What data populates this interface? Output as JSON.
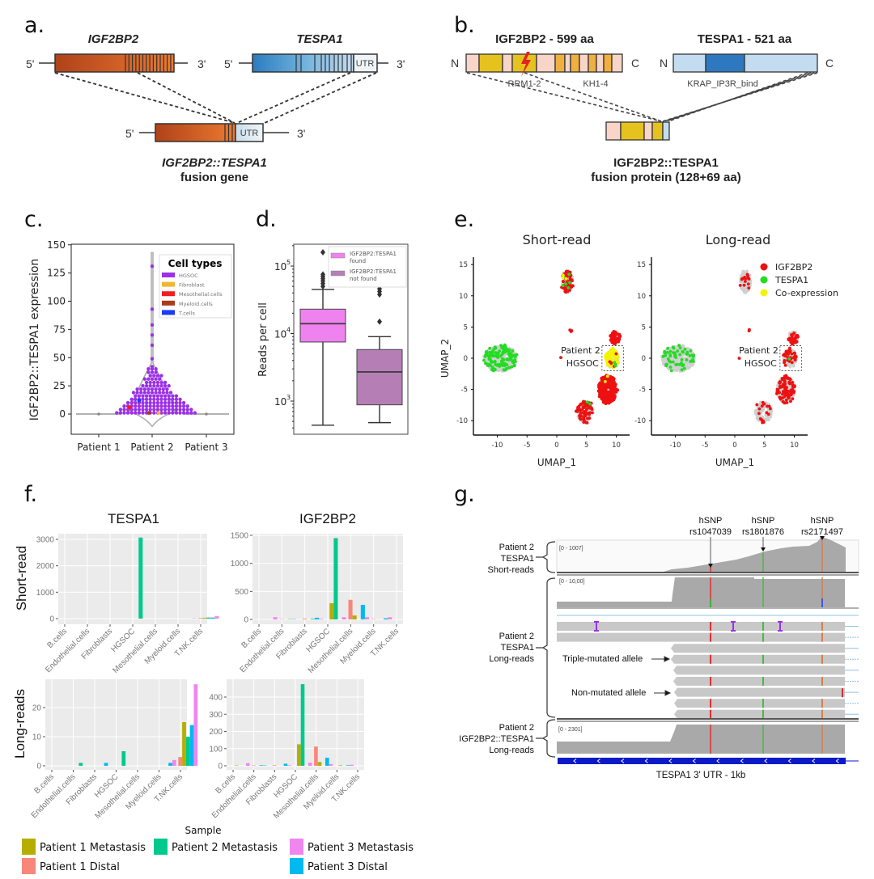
{
  "panel_labels": {
    "a": "a.",
    "b": "b.",
    "c": "c.",
    "d": "d.",
    "e": "e.",
    "f": "f.",
    "g": "g."
  },
  "panel_a": {
    "gene1": "IGF2BP2",
    "gene2": "TESPA1",
    "five_prime": "5'",
    "three_prime": "3'",
    "utr": "UTR",
    "fusion_name": "IGF2BP2::TESPA1",
    "fusion_sub": "fusion gene",
    "colors": {
      "igf2bp2": "#d05a22",
      "tespa1": "#3a8ac8",
      "utr": "#dce8f0"
    }
  },
  "panel_b": {
    "protein1": "IGF2BP2 - 599 aa",
    "protein2": "TESPA1 - 521 aa",
    "n": "N",
    "c": "C",
    "domain1": "RRM1-2",
    "domain2": "KH1-4",
    "domain3": "KRAP_IP3R_bind",
    "fusion_name": "IGF2BP2::TESPA1",
    "fusion_sub": "fusion protein (128+69 aa)",
    "colors": {
      "linker": "#f8d5c8",
      "rrm": "#e6c21e",
      "kh": "#f0b040",
      "tespa_light": "#c4dcf0",
      "tespa_domain": "#2e78c0",
      "mutation": "#e52222"
    }
  },
  "chart_data": [
    {
      "id": "c",
      "type": "violin-swarm",
      "ylabel": "IGF2BP2::TESPA1 expression",
      "categories": [
        "Patient 1",
        "Patient 2",
        "Patient 3"
      ],
      "ylim": [
        -12,
        150
      ],
      "yticks": [
        0,
        25,
        50,
        75,
        100,
        125,
        150
      ],
      "legend": {
        "title": "Cell types",
        "placement": "top-right",
        "items": [
          {
            "name": "HGSOC",
            "color": "#9b30e6"
          },
          {
            "name": "Fibroblast",
            "color": "#f2b632"
          },
          {
            "name": "Mesothelial.cells",
            "color": "#f21d1d"
          },
          {
            "name": "Myeloid.cells",
            "color": "#a83c1c"
          },
          {
            "name": "T.cells",
            "color": "#1a3cf5"
          }
        ]
      },
      "patient1_values": [
        0
      ],
      "patient3_values": [
        0
      ],
      "patient2_levels": [
        [
          1,
          22
        ],
        [
          4,
          20
        ],
        [
          7,
          18
        ],
        [
          10,
          16
        ],
        [
          13,
          14
        ],
        [
          16,
          12
        ],
        [
          19,
          11
        ],
        [
          22,
          9
        ],
        [
          25,
          8
        ],
        [
          28,
          6
        ],
        [
          31,
          5
        ],
        [
          34,
          4
        ],
        [
          37,
          3
        ],
        [
          40,
          3
        ],
        [
          42,
          1
        ],
        [
          49,
          1
        ],
        [
          61,
          1
        ],
        [
          70,
          1
        ],
        [
          79,
          1
        ],
        [
          93,
          1
        ],
        [
          131,
          1
        ]
      ],
      "patient2_special": [
        {
          "value": 6,
          "type": "Mesothelial.cells"
        },
        {
          "value": 12,
          "type": "T.cells"
        },
        {
          "value": 1,
          "type": "Myeloid.cells"
        },
        {
          "value": 1,
          "type": "Fibroblast"
        }
      ]
    },
    {
      "id": "d",
      "type": "box",
      "yscale": "log",
      "ylabel": "Reads per cell",
      "ylim": [
        350,
        200000
      ],
      "yticks": [
        {
          "value": 1000,
          "base": "10",
          "exp": "3"
        },
        {
          "value": 10000,
          "base": "10",
          "exp": "4"
        },
        {
          "value": 100000,
          "base": "10",
          "exp": "5"
        }
      ],
      "legend_placement": "top-right",
      "series": [
        {
          "name": "IGF2BP2:TESPA1 found",
          "name_lines": [
            "IGF2BP2:TESPA1",
            "found"
          ],
          "color": "#ee82ee",
          "whisker_low": 440,
          "q1": 7500,
          "median": 14000,
          "q3": 23000,
          "whisker_high": 45000,
          "outliers": [
            50000,
            55000,
            60000,
            65000,
            70000,
            75000,
            160000
          ]
        },
        {
          "name": "IGF2BP2:TESPA1 not found",
          "name_lines": [
            "IGF2BP2:TESPA1",
            "not found"
          ],
          "color": "#b57fb5",
          "whisker_low": 480,
          "q1": 880,
          "median": 2700,
          "q3": 5800,
          "whisker_high": 9000,
          "outliers": [
            15000,
            38000,
            42000,
            46000
          ]
        }
      ]
    },
    {
      "id": "e",
      "type": "scatter",
      "xlabel": "UMAP_1",
      "ylabel": "UMAP_2",
      "xlim": [
        -14,
        12
      ],
      "ylim": [
        -12,
        16
      ],
      "xticks": [
        -10,
        -5,
        0,
        5,
        10
      ],
      "yticks": [
        -10,
        -5,
        0,
        5,
        10,
        15
      ],
      "panels": [
        "Short-read",
        "Long-read"
      ],
      "legend": {
        "placement": "top-right",
        "items": [
          {
            "name": "IGF2BP2",
            "color": "#ee1111"
          },
          {
            "name": "TESPA1",
            "color": "#22dd22"
          },
          {
            "name": "Co-expression",
            "color": "#f4f400"
          }
        ]
      },
      "background_color": "#cfcfcf",
      "annotation": {
        "line1": "Patient 2",
        "line2": "HGSOC",
        "box": {
          "x": [
            7.6,
            11.2
          ],
          "y": [
            -2,
            2
          ]
        }
      },
      "clusters": [
        {
          "cx": -9.5,
          "cy": 0,
          "sx": 2.8,
          "sy": 2.1,
          "n": 420,
          "short": {
            "TESPA1": 130
          },
          "long": {
            "TESPA1": 55
          }
        },
        {
          "cx": 1.8,
          "cy": 12.3,
          "sx": 0.9,
          "sy": 1.9,
          "n": 110,
          "short": {
            "IGF2BP2": 70,
            "TESPA1": 6,
            "Co-expression": 3
          },
          "long": {
            "IGF2BP2": 14
          }
        },
        {
          "cx": 2.5,
          "cy": 4.5,
          "sx": 0.15,
          "sy": 0.15,
          "n": 3,
          "short": {
            "IGF2BP2": 3
          },
          "long": {
            "IGF2BP2": 2
          }
        },
        {
          "cx": 0.8,
          "cy": 0,
          "sx": 0.1,
          "sy": 0.1,
          "n": 1,
          "short": {
            "IGF2BP2": 1
          },
          "long": {
            "IGF2BP2": 1
          }
        },
        {
          "cx": 9.8,
          "cy": 3.3,
          "sx": 0.8,
          "sy": 1.0,
          "n": 90,
          "short": {
            "IGF2BP2": 90
          },
          "long": {
            "IGF2BP2": 35
          }
        },
        {
          "cx": 9.3,
          "cy": 0,
          "sx": 1.1,
          "sy": 1.5,
          "n": 120,
          "short": {
            "Co-expression": 110,
            "IGF2BP2": 5,
            "TESPA1": 3
          },
          "long": {
            "IGF2BP2": 40,
            "TESPA1": 1
          }
        },
        {
          "cx": 8.6,
          "cy": -5,
          "sx": 1.5,
          "sy": 2.2,
          "n": 380,
          "short": {
            "IGF2BP2": 360,
            "Co-expression": 2
          },
          "long": {
            "IGF2BP2": 90
          }
        },
        {
          "cx": 4.8,
          "cy": -8.6,
          "sx": 1.4,
          "sy": 1.7,
          "n": 110,
          "short": {
            "IGF2BP2": 85,
            "TESPA1": 2
          },
          "long": {
            "IGF2BP2": 18
          }
        }
      ]
    },
    {
      "id": "f",
      "type": "bar",
      "categories": [
        "B.cells",
        "Endothelial.cells",
        "Fibroblasts",
        "HGSOC",
        "Mesothelial.cells",
        "Myeloid.cells",
        "T.NK.cells"
      ],
      "legend": {
        "title": "Sample",
        "placement": "bottom",
        "items": [
          {
            "name": "Patient 1 Metastasis",
            "color": "#b5ad00"
          },
          {
            "name": "Patient 1 Distal",
            "color": "#f8877b"
          },
          {
            "name": "Patient 2 Metastasis",
            "color": "#00c98d"
          },
          {
            "name": "Patient 3 Metastasis",
            "color": "#ef86ef"
          },
          {
            "name": "Patient 3 Distal",
            "color": "#00b9f1"
          }
        ]
      },
      "sample_order": [
        "Patient 1 Distal",
        "Patient 1 Metastasis",
        "Patient 2 Metastasis",
        "Patient 3 Distal",
        "Patient 3 Metastasis"
      ],
      "col_titles": [
        "TESPA1",
        "IGF2BP2"
      ],
      "row_titles": [
        "Short-read",
        "Long-reads"
      ],
      "facets": [
        {
          "gene": "TESPA1",
          "assay": "Short-read",
          "ylim": [
            0,
            3200
          ],
          "yticks": [
            0,
            1000,
            2000,
            3000
          ],
          "values": {
            "Patient 1 Distal": [
              0,
              0,
              0,
              0,
              0,
              0,
              20
            ],
            "Patient 1 Metastasis": [
              0,
              0,
              0,
              0,
              0,
              0,
              30
            ],
            "Patient 2 Metastasis": [
              0,
              0,
              0,
              3070,
              0,
              0,
              40
            ],
            "Patient 3 Distal": [
              0,
              0,
              0,
              0,
              0,
              0,
              40
            ],
            "Patient 3 Metastasis": [
              0,
              0,
              0,
              0,
              0,
              10,
              90
            ]
          }
        },
        {
          "gene": "IGF2BP2",
          "assay": "Short-read",
          "ylim": [
            0,
            1550
          ],
          "yticks": [
            0,
            500,
            1000,
            1500
          ],
          "values": {
            "Patient 1 Distal": [
              0,
              5,
              12,
              0,
              350,
              5,
              0
            ],
            "Patient 1 Metastasis": [
              0,
              0,
              0,
              290,
              70,
              0,
              0
            ],
            "Patient 2 Metastasis": [
              0,
              5,
              10,
              1450,
              0,
              0,
              0
            ],
            "Patient 3 Distal": [
              0,
              5,
              30,
              0,
              260,
              20,
              0
            ],
            "Patient 3 Metastasis": [
              40,
              0,
              10,
              40,
              40,
              40,
              0
            ]
          }
        },
        {
          "gene": "TESPA1",
          "assay": "Long-reads",
          "ylim": [
            0,
            29
          ],
          "yticks": [
            0,
            10,
            20
          ],
          "values": {
            "Patient 1 Distal": [
              0,
              0,
              0,
              0,
              0,
              0,
              3
            ],
            "Patient 1 Metastasis": [
              0,
              0,
              0,
              0,
              0,
              0,
              15
            ],
            "Patient 2 Metastasis": [
              0,
              1,
              0,
              5,
              0,
              0,
              10
            ],
            "Patient 3 Distal": [
              0,
              0,
              1,
              0,
              0,
              1,
              14
            ],
            "Patient 3 Metastasis": [
              0,
              0,
              0,
              0,
              0,
              2,
              28
            ]
          }
        },
        {
          "gene": "IGF2BP2",
          "assay": "Long-reads",
          "ylim": [
            0,
            490
          ],
          "yticks": [
            0,
            100,
            200,
            300,
            400
          ],
          "values": {
            "Patient 1 Distal": [
              0,
              2,
              3,
              0,
              112,
              0,
              0
            ],
            "Patient 1 Metastasis": [
              2,
              0,
              0,
              125,
              22,
              3,
              0
            ],
            "Patient 2 Metastasis": [
              0,
              3,
              0,
              475,
              0,
              0,
              0
            ],
            "Patient 3 Distal": [
              0,
              2,
              12,
              0,
              47,
              3,
              0
            ],
            "Patient 3 Metastasis": [
              15,
              0,
              3,
              18,
              10,
              6,
              0
            ]
          }
        }
      ]
    }
  ],
  "panel_g": {
    "snps": [
      {
        "label": "hSNP",
        "id": "rs1047039",
        "color": "#e03030"
      },
      {
        "label": "hSNP",
        "id": "rs1801876",
        "color": "#44bb44"
      },
      {
        "label": "hSNP",
        "id": "rs2171497",
        "color": "#d08050"
      }
    ],
    "tracks": [
      {
        "lines": [
          "Patient 2",
          "TESPA1",
          "Short-reads"
        ],
        "range": "[0 - 1007]"
      },
      {
        "lines": [
          "Patient 2",
          "TESPA1",
          "Long-reads"
        ],
        "range": "[0 - 10,00]"
      },
      {
        "lines": [
          "Patient 2",
          "IGF2BP2::TESPA1",
          "Long-reads"
        ],
        "range": "[0 - 2301]"
      }
    ],
    "annotations": {
      "triple": "Triple-mutated allele",
      "non": "Non-mutated allele"
    },
    "gene_label": "TESPA1 3' UTR - 1kb",
    "gene_color": "#0a1ac8",
    "coverage_color": "#a9a9a9",
    "read_color": "#c8c8c8",
    "insertion_color": "#9b30e6"
  }
}
